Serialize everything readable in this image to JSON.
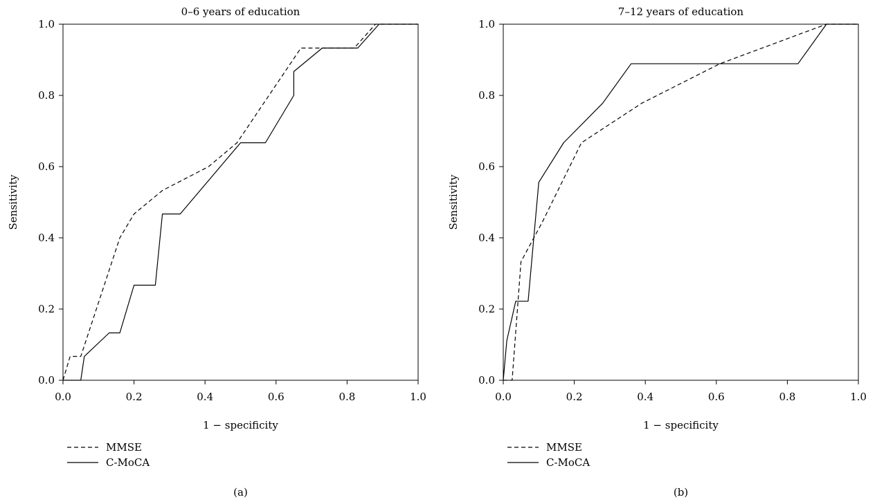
{
  "chart_data": [
    {
      "type": "line",
      "title": "0–6 years of education",
      "xlabel": "1 − specificity",
      "ylabel": "Sensitivity",
      "panel_label": "(a)",
      "xlim": [
        0,
        1
      ],
      "ylim": [
        0,
        1
      ],
      "xticks": [
        "0.0",
        "0.2",
        "0.4",
        "0.6",
        "0.8",
        "1.0"
      ],
      "yticks": [
        "0.0",
        "0.2",
        "0.4",
        "0.6",
        "0.8",
        "1.0"
      ],
      "grid": false,
      "legend": "bottom-left below plot",
      "series": [
        {
          "name": "MMSE",
          "style": "dashed",
          "points": [
            [
              0,
              0
            ],
            [
              0.02,
              0.067
            ],
            [
              0.05,
              0.067
            ],
            [
              0.16,
              0.4
            ],
            [
              0.2,
              0.467
            ],
            [
              0.28,
              0.533
            ],
            [
              0.41,
              0.6
            ],
            [
              0.49,
              0.667
            ],
            [
              0.67,
              0.933
            ],
            [
              0.82,
              0.933
            ],
            [
              0.88,
              1
            ],
            [
              1,
              1
            ]
          ]
        },
        {
          "name": "C-MoCA",
          "style": "solid",
          "points": [
            [
              0,
              0
            ],
            [
              0.05,
              0
            ],
            [
              0.06,
              0.067
            ],
            [
              0.13,
              0.133
            ],
            [
              0.16,
              0.133
            ],
            [
              0.2,
              0.267
            ],
            [
              0.26,
              0.267
            ],
            [
              0.28,
              0.467
            ],
            [
              0.33,
              0.467
            ],
            [
              0.5,
              0.667
            ],
            [
              0.57,
              0.667
            ],
            [
              0.65,
              0.8
            ],
            [
              0.65,
              0.867
            ],
            [
              0.73,
              0.933
            ],
            [
              0.83,
              0.933
            ],
            [
              0.89,
              1
            ],
            [
              1,
              1
            ]
          ]
        }
      ]
    },
    {
      "type": "line",
      "title": "7–12 years of education",
      "xlabel": "1 − specificity",
      "ylabel": "Sensitivity",
      "panel_label": "(b)",
      "xlim": [
        0,
        1
      ],
      "ylim": [
        0,
        1
      ],
      "xticks": [
        "0.0",
        "0.2",
        "0.4",
        "0.6",
        "0.8",
        "1.0"
      ],
      "yticks": [
        "0.0",
        "0.2",
        "0.4",
        "0.6",
        "0.8",
        "1.0"
      ],
      "grid": false,
      "legend": "bottom-left below plot",
      "series": [
        {
          "name": "MMSE",
          "style": "dashed",
          "points": [
            [
              0,
              0
            ],
            [
              0.025,
              0
            ],
            [
              0.05,
              0.333
            ],
            [
              0.11,
              0.444
            ],
            [
              0.22,
              0.667
            ],
            [
              0.39,
              0.778
            ],
            [
              0.61,
              0.889
            ],
            [
              0.91,
              1
            ],
            [
              1,
              1
            ]
          ]
        },
        {
          "name": "C-MoCA",
          "style": "solid",
          "points": [
            [
              0,
              0
            ],
            [
              0.01,
              0.111
            ],
            [
              0.035,
              0.222
            ],
            [
              0.07,
              0.222
            ],
            [
              0.1,
              0.556
            ],
            [
              0.17,
              0.667
            ],
            [
              0.28,
              0.778
            ],
            [
              0.36,
              0.889
            ],
            [
              0.83,
              0.889
            ],
            [
              0.91,
              1
            ],
            [
              1,
              1
            ]
          ]
        }
      ]
    }
  ]
}
